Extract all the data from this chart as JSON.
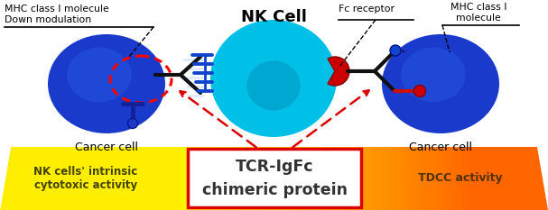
{
  "bg_color": "#ffffff",
  "bottom_text_left": "NK cells' intrinsic\ncytotoxic activity",
  "bottom_text_center_line1": "TCR-IgFc",
  "bottom_text_center_line2": "chimeric protein",
  "bottom_text_right": "TDCC activity",
  "label_nk": "NK Cell",
  "label_cancer_left": "Cancer cell",
  "label_cancer_right": "Cancer cell",
  "label_mhc_left": "MHC class I molecule\nDown modulation",
  "label_fc_receptor": "Fc receptor",
  "label_mhc_right": "MHC class I\nmolecule",
  "cancer_cell_color": "#1a3acc",
  "nk_cell_color": "#00c0e8",
  "nk_inner_color": "#0090bb",
  "cancer_inner_color": "#2255dd",
  "antibody_black": "#111111",
  "antibody_blue": "#1144cc",
  "antibody_red": "#cc1100",
  "receptor_red": "#cc0000",
  "receptor_dark": "#220000",
  "blue_receptor": "#112299",
  "red_arrow": "#dd0000",
  "text_dark": "#444400",
  "banner_yellow": "#ffee00",
  "banner_orange": "#ff8800",
  "box_edge_red": "#dd0000",
  "label_color": "#333333"
}
